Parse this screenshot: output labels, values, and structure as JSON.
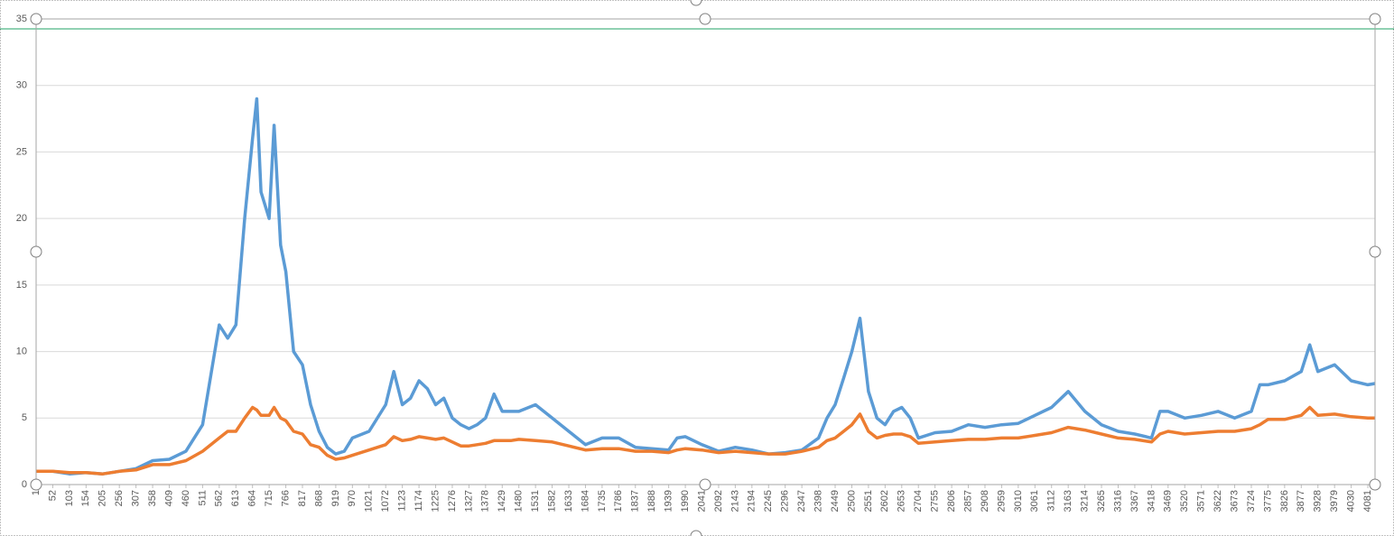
{
  "chart_data": {
    "type": "line",
    "grid": true,
    "xlim": [
      1,
      4103
    ],
    "ylim": [
      0,
      35
    ],
    "yticks": [
      0,
      5,
      10,
      15,
      20,
      25,
      30,
      35
    ],
    "xticks": [
      1,
      52,
      103,
      154,
      205,
      256,
      307,
      358,
      409,
      460,
      511,
      562,
      613,
      664,
      715,
      766,
      817,
      868,
      919,
      970,
      1021,
      1072,
      1123,
      1174,
      1225,
      1276,
      1327,
      1378,
      1429,
      1480,
      1531,
      1582,
      1633,
      1684,
      1735,
      1786,
      1837,
      1888,
      1939,
      1990,
      2041,
      2092,
      2143,
      2194,
      2245,
      2296,
      2347,
      2398,
      2449,
      2500,
      2551,
      2602,
      2653,
      2704,
      2755,
      2806,
      2857,
      2908,
      2959,
      3010,
      3061,
      3112,
      3163,
      3214,
      3265,
      3316,
      3367,
      3418,
      3469,
      3520,
      3571,
      3622,
      3673,
      3724,
      3775,
      3826,
      3877,
      3928,
      3979,
      4030,
      4081
    ],
    "x": [
      1,
      52,
      103,
      154,
      205,
      256,
      307,
      358,
      409,
      460,
      511,
      562,
      588,
      613,
      640,
      664,
      677,
      690,
      715,
      730,
      750,
      766,
      790,
      817,
      842,
      868,
      893,
      919,
      945,
      970,
      1021,
      1072,
      1097,
      1123,
      1148,
      1174,
      1200,
      1225,
      1250,
      1276,
      1302,
      1327,
      1352,
      1378,
      1404,
      1429,
      1455,
      1480,
      1531,
      1582,
      1633,
      1684,
      1735,
      1786,
      1837,
      1888,
      1939,
      1965,
      1990,
      2041,
      2092,
      2143,
      2194,
      2245,
      2296,
      2347,
      2398,
      2424,
      2449,
      2475,
      2500,
      2525,
      2551,
      2577,
      2602,
      2628,
      2653,
      2679,
      2704,
      2755,
      2806,
      2857,
      2908,
      2959,
      3010,
      3061,
      3112,
      3163,
      3214,
      3265,
      3316,
      3367,
      3418,
      3444,
      3469,
      3520,
      3571,
      3622,
      3673,
      3724,
      3750,
      3775,
      3826,
      3877,
      3903,
      3928,
      3979,
      4030,
      4081,
      4103
    ],
    "series": [
      {
        "color": "#5b9bd5",
        "values": [
          1.0,
          1.0,
          0.8,
          0.9,
          0.8,
          1.0,
          1.2,
          1.8,
          1.9,
          2.5,
          4.5,
          12,
          11,
          12,
          20,
          26,
          29,
          22,
          20,
          27,
          18,
          16,
          10,
          9,
          6,
          4,
          2.8,
          2.3,
          2.5,
          3.5,
          4,
          6,
          8.5,
          6,
          6.5,
          7.8,
          7.2,
          6,
          6.5,
          5,
          4.5,
          4.2,
          4.5,
          5,
          6.8,
          5.5,
          5.5,
          5.5,
          6,
          5,
          4,
          3,
          3.5,
          3.5,
          2.8,
          2.7,
          2.6,
          3.5,
          3.6,
          3,
          2.5,
          2.8,
          2.6,
          2.3,
          2.4,
          2.6,
          3.5,
          5,
          6,
          8,
          10,
          12.5,
          7,
          5,
          4.5,
          5.5,
          5.8,
          5,
          3.5,
          3.9,
          4,
          4.5,
          4.3,
          4.5,
          4.6,
          5.2,
          5.8,
          7,
          5.5,
          4.5,
          4,
          3.8,
          3.5,
          5.5,
          5.5,
          5,
          5.2,
          5.5,
          5,
          5.5,
          7.5,
          7.5,
          7.8,
          8.5,
          10.5,
          8.5,
          9,
          7.8,
          7.5,
          7.6
        ]
      },
      {
        "color": "#ed7d31",
        "values": [
          1.0,
          1.0,
          0.9,
          0.9,
          0.8,
          1.0,
          1.1,
          1.5,
          1.5,
          1.8,
          2.5,
          3.5,
          4,
          4,
          5,
          5.8,
          5.6,
          5.2,
          5.2,
          5.8,
          5,
          4.8,
          4,
          3.8,
          3,
          2.8,
          2.2,
          1.9,
          2.0,
          2.2,
          2.6,
          3,
          3.6,
          3.3,
          3.4,
          3.6,
          3.5,
          3.4,
          3.5,
          3.2,
          2.9,
          2.9,
          3,
          3.1,
          3.3,
          3.3,
          3.3,
          3.4,
          3.3,
          3.2,
          2.9,
          2.6,
          2.7,
          2.7,
          2.5,
          2.5,
          2.4,
          2.6,
          2.7,
          2.6,
          2.4,
          2.5,
          2.4,
          2.3,
          2.3,
          2.5,
          2.8,
          3.3,
          3.5,
          4,
          4.5,
          5.3,
          4,
          3.5,
          3.7,
          3.8,
          3.8,
          3.6,
          3.1,
          3.2,
          3.3,
          3.4,
          3.4,
          3.5,
          3.5,
          3.7,
          3.9,
          4.3,
          4.1,
          3.8,
          3.5,
          3.4,
          3.2,
          3.8,
          4,
          3.8,
          3.9,
          4,
          4,
          4.2,
          4.5,
          4.9,
          4.9,
          5.2,
          5.8,
          5.2,
          5.3,
          5.1,
          5,
          5
        ]
      }
    ]
  }
}
